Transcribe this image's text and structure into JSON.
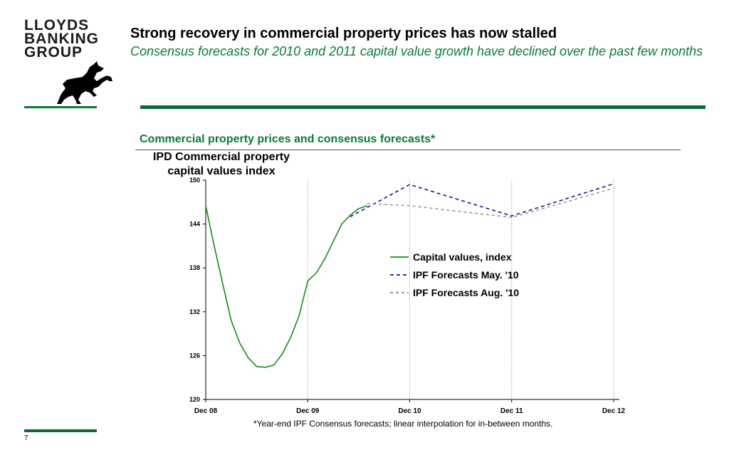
{
  "logo": {
    "lines": [
      "LLOYDS",
      "BANKING",
      "GROUP"
    ],
    "icon": "black-horse-icon"
  },
  "title": "Strong recovery in commercial property prices has now stalled",
  "subtitle": "Consensus forecasts for 2010 and 2011 capital value growth have declined over the past few months",
  "colors": {
    "accent_green": "#0b7a3b",
    "series_actual": "#1a8a1a",
    "series_may": "#1a1a80",
    "series_aug": "#8c8c8c"
  },
  "chart_data": {
    "type": "line",
    "title": "Commercial property prices and consensus forecasts*",
    "ylabel": "IPD Commercial property capital values index",
    "xlabel": "",
    "categories": [
      "Dec 08",
      "Dec 09",
      "Dec 10",
      "Dec 11",
      "Dec 12"
    ],
    "y_ticks": [
      "150",
      "144",
      "138",
      "132",
      "126",
      "120"
    ],
    "ylim": [
      120,
      150
    ],
    "grid": "vertical dotted lines at Dec 09, Dec 10, Dec 11, Dec 12",
    "legend_position": "right",
    "series": [
      {
        "name": "Capital values, index",
        "style": "solid",
        "x": [
          "Dec 08",
          "Jan 09",
          "Feb 09",
          "Mar 09",
          "Apr 09",
          "May 09",
          "Jun 09",
          "Jul 09",
          "Aug 09",
          "Sep 09",
          "Oct 09",
          "Nov 09",
          "Dec 09",
          "Jan 10",
          "Feb 10",
          "Mar 10",
          "Apr 10",
          "May 10",
          "Jun 10",
          "Jul 10"
        ],
        "values": [
          146.5,
          141.0,
          135.8,
          130.8,
          127.7,
          125.7,
          124.5,
          124.4,
          124.7,
          126.2,
          128.5,
          131.5,
          136.2,
          137.3,
          139.2,
          141.6,
          144.0,
          145.2,
          146.1,
          146.5
        ]
      },
      {
        "name": "IPF Forecasts May. '10",
        "style": "dashed",
        "x": [
          "May 10",
          "Dec 10",
          "Dec 11",
          "Dec 12"
        ],
        "values": [
          145.0,
          149.4,
          145.1,
          149.5
        ]
      },
      {
        "name": "IPF Forecasts Aug. '10",
        "style": "dashed",
        "x": [
          "Jul 10",
          "Dec 10",
          "Dec 11",
          "Dec 12"
        ],
        "values": [
          146.8,
          146.5,
          144.9,
          148.9
        ]
      }
    ]
  },
  "footnote": "*Year-end IPF Consensus forecasts; linear interpolation for in-between months.",
  "page_number": "7"
}
